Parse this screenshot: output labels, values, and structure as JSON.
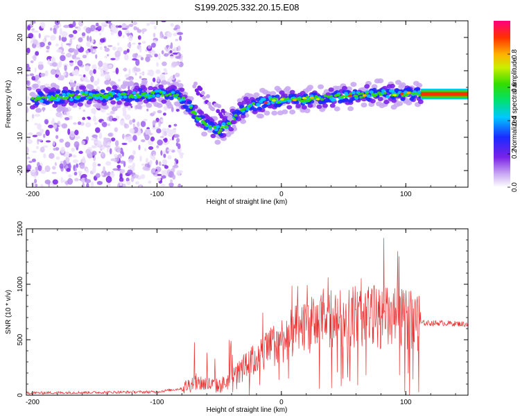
{
  "figure_title": "S199.2025.332.20.15.E08",
  "chart_data": [
    {
      "type": "heatmap",
      "name": "spectrogram",
      "xlabel": "Height of straight line (km)",
      "ylabel": "Frequency (Hz)",
      "xlim": [
        -205,
        150
      ],
      "ylim": [
        -25,
        25
      ],
      "xticks": [
        -200,
        -100,
        0,
        100
      ],
      "yticks": [
        -20,
        -10,
        0,
        10,
        20
      ],
      "colorbar": {
        "label": "Normalized spectral amplitude",
        "range": [
          0,
          1
        ],
        "ticks": [
          "0.0",
          "0.2",
          "0.4",
          "0.6",
          "0.8"
        ],
        "tick_values": [
          0,
          0.2,
          0.4,
          0.6,
          0.8
        ]
      },
      "ridge": {
        "x": [
          -200,
          -180,
          -160,
          -140,
          -120,
          -100,
          -90,
          -80,
          -70,
          -60,
          -50,
          -40,
          -30,
          -20,
          -10,
          0,
          20,
          40,
          60,
          80,
          100,
          110,
          150
        ],
        "freq": [
          1.5,
          2,
          2.5,
          2.5,
          2.5,
          3,
          3,
          2,
          -3,
          -6,
          -8,
          -5,
          -1,
          0,
          1,
          1,
          1.5,
          2,
          2.5,
          3,
          3,
          3,
          3
        ]
      }
    },
    {
      "type": "line",
      "name": "snr",
      "xlabel": "Height of straight line (km)",
      "ylabel": "SNR (10 * v/v)",
      "xlim": [
        -205,
        150
      ],
      "ylim": [
        0,
        1500
      ],
      "xticks": [
        -200,
        -100,
        0,
        100
      ],
      "yticks": [
        0,
        500,
        1000,
        1500
      ],
      "color": "#e83030",
      "envelope_x": [
        -205,
        -150,
        -100,
        -80,
        -70,
        -60,
        -50,
        -40,
        -30,
        -20,
        -10,
        0,
        10,
        20,
        30,
        40,
        50,
        60,
        70,
        80,
        90,
        100,
        110,
        112,
        130,
        150
      ],
      "envelope_y": [
        20,
        25,
        30,
        60,
        120,
        100,
        80,
        150,
        250,
        330,
        420,
        500,
        560,
        620,
        650,
        680,
        700,
        710,
        720,
        700,
        690,
        680,
        670,
        650,
        650,
        640
      ]
    }
  ]
}
